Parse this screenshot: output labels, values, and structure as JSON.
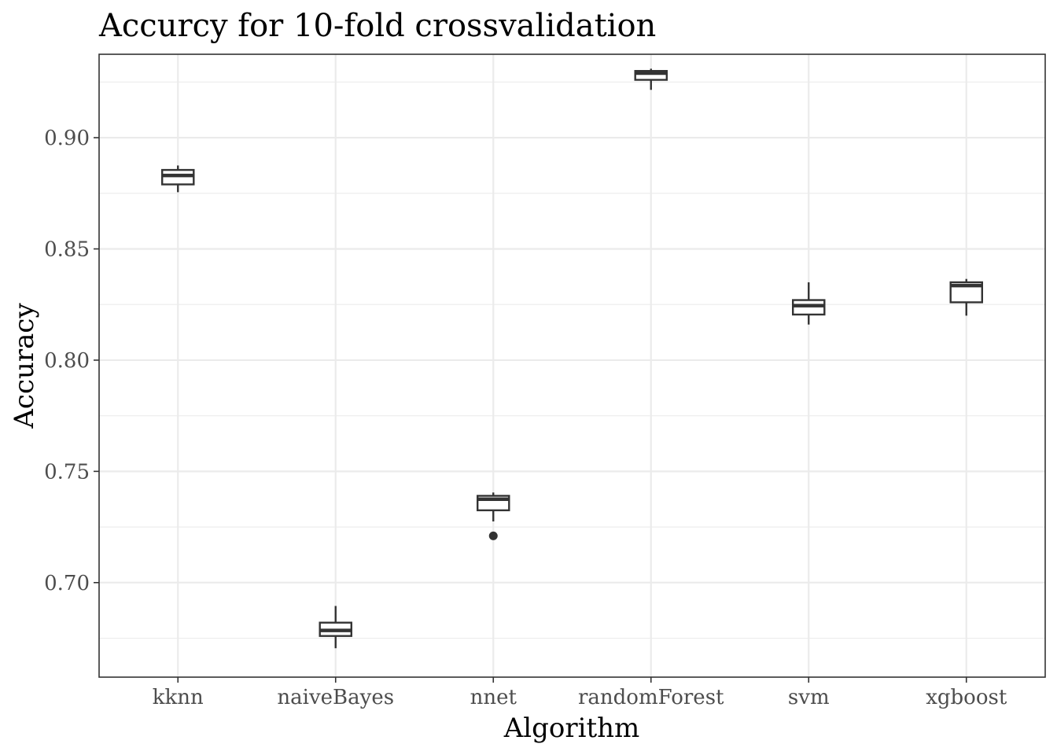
{
  "chart_data": {
    "type": "boxplot",
    "title": "Accurcy for 10-fold crossvalidation",
    "xlabel": "Algorithm",
    "ylabel": "Accuracy",
    "ylim": [
      0.6575,
      0.9375
    ],
    "yticks": [
      0.7,
      0.75,
      0.8,
      0.85,
      0.9
    ],
    "ytick_labels": [
      "0.70",
      "0.75",
      "0.80",
      "0.85",
      "0.90"
    ],
    "grid": true,
    "categories": [
      "kknn",
      "naiveBayes",
      "nnet",
      "randomForest",
      "svm",
      "xgboost"
    ],
    "boxes": [
      {
        "name": "kknn",
        "min": 0.8755,
        "q1": 0.879,
        "median": 0.883,
        "q3": 0.8855,
        "max": 0.8875,
        "outliers": []
      },
      {
        "name": "naiveBayes",
        "min": 0.6705,
        "q1": 0.676,
        "median": 0.6785,
        "q3": 0.682,
        "max": 0.6895,
        "outliers": []
      },
      {
        "name": "nnet",
        "min": 0.7275,
        "q1": 0.7325,
        "median": 0.7375,
        "q3": 0.739,
        "max": 0.7405,
        "outliers": [
          0.721
        ]
      },
      {
        "name": "randomForest",
        "min": 0.9215,
        "q1": 0.926,
        "median": 0.929,
        "q3": 0.93,
        "max": 0.931,
        "outliers": []
      },
      {
        "name": "svm",
        "min": 0.816,
        "q1": 0.8205,
        "median": 0.8245,
        "q3": 0.827,
        "max": 0.835,
        "outliers": []
      },
      {
        "name": "xgboost",
        "min": 0.82,
        "q1": 0.826,
        "median": 0.8335,
        "q3": 0.835,
        "max": 0.8365,
        "outliers": []
      }
    ]
  }
}
